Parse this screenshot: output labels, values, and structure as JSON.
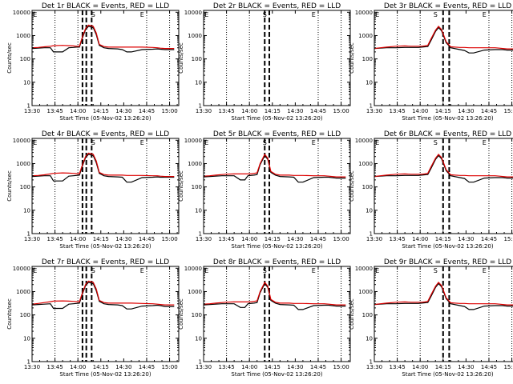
{
  "chart_data": {
    "type": "line",
    "grid_layout": "3x3",
    "shared": {
      "xlabel": "Start Time (05-Nov-02 13:26:20)",
      "ylabel": "Counts/sec",
      "x_tick_labels": [
        "13:30",
        "13:45",
        "14:00",
        "14:15",
        "14:30",
        "14:45",
        "15:00"
      ],
      "x_tick_minutes": [
        0,
        15,
        30,
        45,
        60,
        75,
        90
      ],
      "x_range_minutes": [
        0,
        96
      ],
      "y_tick_labels": [
        "1",
        "10",
        "100",
        "1000",
        "10000"
      ],
      "y_tick_values": [
        1,
        10,
        100,
        1000,
        10000
      ],
      "ylim": [
        1,
        12000
      ],
      "y_scale": "log",
      "dotted_vlines_minutes": [
        15,
        30,
        75,
        90
      ],
      "region_letters": [
        "E",
        "S",
        "E"
      ],
      "region_letter_minutes": [
        2,
        40,
        72
      ],
      "series_colors": {
        "events": "#000000",
        "lld": "#dd0000"
      },
      "series_names": [
        "Events",
        "LLD"
      ],
      "curve_minutes": [
        0,
        4,
        8,
        12,
        14,
        20,
        24,
        27,
        29,
        31,
        33,
        35,
        37,
        40,
        42,
        44,
        47,
        50,
        56,
        59,
        62,
        65,
        72,
        79,
        82,
        84,
        87,
        93
      ]
    },
    "panels": [
      {
        "title": "Det 1r BLACK = Events, RED = LLD",
        "dash_minutes": [
          33,
          35.5,
          39
        ],
        "events": [
          280,
          290,
          300,
          300,
          200,
          200,
          300,
          310,
          320,
          320,
          800,
          1800,
          2500,
          2200,
          1100,
          380,
          300,
          280,
          270,
          250,
          200,
          200,
          250,
          260,
          270,
          260,
          250,
          250
        ],
        "lld": [
          300,
          310,
          330,
          350,
          370,
          380,
          370,
          360,
          350,
          350,
          900,
          2000,
          2800,
          2500,
          1300,
          420,
          340,
          320,
          320,
          320,
          320,
          320,
          320,
          310,
          300,
          290,
          280,
          280
        ]
      },
      {
        "title": "Det 2r BLACK = Events, RED = LLD",
        "dash_minutes": [
          40,
          43
        ],
        "events": [],
        "lld": []
      },
      {
        "title": "Det 3r BLACK = Events, RED = LLD",
        "dash_minutes": [
          45,
          49
        ],
        "events": [
          280,
          290,
          300,
          300,
          300,
          310,
          310,
          310,
          310,
          320,
          330,
          340,
          600,
          1500,
          2200,
          1600,
          500,
          300,
          250,
          230,
          180,
          180,
          240,
          250,
          250,
          250,
          240,
          240
        ],
        "lld": [
          280,
          300,
          320,
          340,
          350,
          360,
          350,
          350,
          350,
          350,
          360,
          380,
          700,
          1700,
          2500,
          1800,
          550,
          330,
          310,
          310,
          300,
          300,
          300,
          300,
          290,
          280,
          270,
          270
        ]
      },
      {
        "title": "Det 4r BLACK = Events, RED = LLD",
        "dash_minutes": [
          33,
          35.5,
          39
        ],
        "events": [
          280,
          290,
          300,
          300,
          180,
          180,
          290,
          300,
          310,
          320,
          800,
          1800,
          2500,
          2200,
          1100,
          380,
          300,
          280,
          270,
          260,
          160,
          160,
          250,
          260,
          270,
          260,
          260,
          260
        ],
        "lld": [
          300,
          310,
          330,
          360,
          380,
          400,
          390,
          380,
          370,
          370,
          900,
          2000,
          2800,
          2500,
          1300,
          420,
          340,
          320,
          320,
          320,
          310,
          310,
          310,
          300,
          300,
          290,
          280,
          280
        ]
      },
      {
        "title": "Det 5r BLACK = Events, RED = LLD",
        "dash_minutes": [
          40,
          43
        ],
        "events": [
          270,
          280,
          290,
          300,
          300,
          300,
          200,
          200,
          300,
          310,
          320,
          340,
          900,
          2200,
          1500,
          420,
          320,
          280,
          270,
          260,
          160,
          160,
          250,
          260,
          260,
          250,
          240,
          240
        ],
        "lld": [
          290,
          300,
          320,
          340,
          350,
          360,
          360,
          360,
          360,
          360,
          380,
          400,
          1000,
          2500,
          1700,
          460,
          350,
          320,
          320,
          310,
          310,
          310,
          300,
          300,
          290,
          280,
          270,
          270
        ]
      },
      {
        "title": "Det 6r BLACK = Events, RED = LLD",
        "dash_minutes": [
          45,
          49
        ],
        "events": [
          280,
          290,
          300,
          300,
          300,
          310,
          310,
          310,
          310,
          320,
          330,
          340,
          600,
          1500,
          2200,
          1600,
          500,
          300,
          250,
          230,
          160,
          160,
          240,
          250,
          250,
          250,
          240,
          240
        ],
        "lld": [
          280,
          300,
          320,
          340,
          350,
          360,
          350,
          350,
          350,
          350,
          360,
          380,
          700,
          1700,
          2500,
          1800,
          550,
          330,
          310,
          310,
          300,
          300,
          300,
          300,
          290,
          280,
          270,
          270
        ]
      },
      {
        "title": "Det 7r BLACK = Events, RED = LLD",
        "dash_minutes": [
          33,
          35.5,
          39
        ],
        "events": [
          270,
          280,
          290,
          300,
          190,
          190,
          290,
          300,
          310,
          320,
          800,
          1800,
          2500,
          2200,
          1100,
          380,
          300,
          280,
          270,
          250,
          180,
          180,
          240,
          250,
          260,
          250,
          230,
          230
        ],
        "lld": [
          290,
          310,
          340,
          370,
          390,
          400,
          390,
          380,
          370,
          370,
          900,
          2000,
          2800,
          2500,
          1300,
          420,
          340,
          320,
          320,
          320,
          320,
          320,
          310,
          300,
          290,
          280,
          270,
          270
        ]
      },
      {
        "title": "Det 8r BLACK = Events, RED = LLD",
        "dash_minutes": [
          40,
          43
        ],
        "events": [
          270,
          280,
          290,
          300,
          300,
          300,
          210,
          210,
          300,
          310,
          320,
          340,
          900,
          2200,
          1500,
          420,
          320,
          280,
          270,
          260,
          170,
          170,
          250,
          260,
          260,
          250,
          240,
          240
        ],
        "lld": [
          290,
          300,
          320,
          340,
          350,
          360,
          360,
          360,
          360,
          360,
          380,
          400,
          1000,
          2500,
          1700,
          460,
          350,
          320,
          320,
          310,
          310,
          310,
          300,
          300,
          290,
          280,
          270,
          270
        ]
      },
      {
        "title": "Det 9r BLACK = Events, RED = LLD",
        "dash_minutes": [
          45,
          49
        ],
        "events": [
          280,
          290,
          300,
          300,
          300,
          310,
          310,
          310,
          310,
          320,
          330,
          340,
          600,
          1500,
          2200,
          1600,
          500,
          300,
          250,
          230,
          170,
          170,
          240,
          250,
          250,
          250,
          240,
          240
        ],
        "lld": [
          280,
          300,
          320,
          340,
          350,
          360,
          350,
          350,
          350,
          350,
          360,
          380,
          700,
          1700,
          2500,
          1800,
          550,
          330,
          310,
          310,
          300,
          300,
          300,
          300,
          290,
          280,
          270,
          270
        ]
      }
    ]
  }
}
